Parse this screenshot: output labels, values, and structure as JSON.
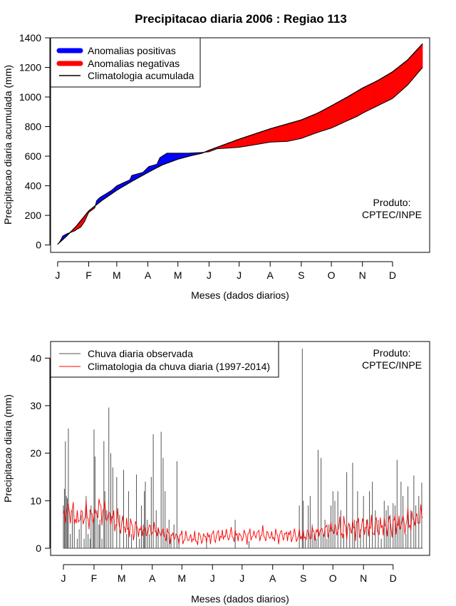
{
  "figure_title": "Precipitacao diaria 2006 : Regiao 113",
  "chart_data": [
    {
      "type": "area",
      "ylabel": "Precipitacao diaria acumulada (mm)",
      "xlabel": "Meses (dados diarios)",
      "xlim": [
        -6,
        372
      ],
      "ylim": [
        -50,
        1400
      ],
      "yticks": [
        0,
        200,
        400,
        600,
        800,
        1000,
        1200,
        1400
      ],
      "month_labels": [
        "J",
        "F",
        "M",
        "A",
        "M",
        "J",
        "J",
        "A",
        "S",
        "O",
        "N",
        "D"
      ],
      "month_ticks": [
        1,
        32,
        60,
        91,
        121,
        152,
        182,
        213,
        244,
        274,
        305,
        335
      ],
      "legend": [
        {
          "label": "Anomalias positivas",
          "color": "#0000ff"
        },
        {
          "label": "Anomalias negativas",
          "color": "#ff0000"
        },
        {
          "label": "Climatologia acumulada",
          "color": "#000000"
        }
      ],
      "product_label": [
        "Produto:",
        "CPTEC/INPE"
      ],
      "climatology_anchors": {
        "day": [
          1,
          10,
          20,
          32,
          45,
          60,
          75,
          91,
          105,
          121,
          135,
          145,
          152,
          182,
          213,
          244,
          260,
          274,
          290,
          305,
          320,
          335,
          350,
          365
        ],
        "value": [
          5,
          60,
          130,
          230,
          300,
          370,
          430,
          490,
          540,
          580,
          605,
          620,
          640,
          715,
          785,
          845,
          890,
          940,
          1000,
          1060,
          1110,
          1170,
          1250,
          1360
        ]
      },
      "observed_anchors": {
        "day": [
          1,
          3,
          5,
          6,
          10,
          18,
          20,
          24,
          28,
          32,
          38,
          40,
          43,
          55,
          60,
          73,
          75,
          86,
          89,
          92,
          100,
          103,
          110,
          130,
          145,
          152,
          160,
          182,
          200,
          213,
          230,
          244,
          260,
          274,
          290,
          300,
          305,
          320,
          335,
          350,
          365
        ],
        "value": [
          5,
          20,
          45,
          60,
          75,
          95,
          105,
          120,
          160,
          220,
          250,
          300,
          320,
          370,
          400,
          440,
          470,
          490,
          510,
          530,
          545,
          590,
          620,
          620,
          625,
          630,
          650,
          660,
          680,
          695,
          700,
          720,
          760,
          790,
          840,
          870,
          890,
          940,
          990,
          1080,
          1200
        ]
      }
    },
    {
      "type": "bar",
      "ylabel": "Precipitacao diaria (mm)",
      "xlabel": "Meses (dados diarios)",
      "xlim": [
        -12,
        372
      ],
      "ylim": [
        -1.5,
        43.5
      ],
      "yticks": [
        0,
        10,
        20,
        30,
        40
      ],
      "month_labels": [
        "J",
        "F",
        "M",
        "A",
        "M",
        "J",
        "J",
        "A",
        "S",
        "O",
        "N",
        "D"
      ],
      "month_ticks": [
        1,
        32,
        60,
        91,
        121,
        152,
        182,
        213,
        244,
        274,
        305,
        335
      ],
      "legend": [
        {
          "label": "Chuva diaria observada",
          "color": "#555555"
        },
        {
          "label": "Climatologia da chuva diaria (1997-2014)",
          "color": "#ff0000"
        }
      ],
      "product_label": [
        "Produto:",
        "CPTEC/INPE"
      ],
      "observed_daily": {
        "day": [
          1,
          2,
          3,
          4,
          5,
          6,
          8,
          10,
          12,
          15,
          17,
          19,
          22,
          24,
          26,
          28,
          29,
          31,
          32,
          33,
          35,
          37,
          38,
          40,
          42,
          43,
          45,
          47,
          49,
          51,
          55,
          58,
          62,
          65,
          67,
          70,
          75,
          78,
          80,
          82,
          83,
          84,
          86,
          88,
          90,
          92,
          95,
          97,
          100,
          102,
          104,
          106,
          108,
          110,
          113,
          116,
          118,
          146,
          175,
          189,
          240,
          243,
          244,
          246,
          249,
          251,
          253,
          255,
          257,
          259,
          262,
          264,
          266,
          268,
          270,
          272,
          274,
          276,
          279,
          282,
          285,
          288,
          291,
          294,
          296,
          299,
          302,
          305,
          308,
          311,
          314,
          317,
          320,
          323,
          326,
          328,
          330,
          332,
          335,
          337,
          339,
          341,
          343,
          345,
          348,
          350,
          353,
          356,
          358,
          361,
          364
        ],
        "value": [
          9,
          12.5,
          22.5,
          11,
          10.5,
          25.2,
          3,
          8,
          6,
          2,
          4,
          7,
          2,
          11,
          3,
          2,
          9,
          6,
          25,
          19.3,
          8,
          5,
          6,
          2,
          22.5,
          12,
          8,
          29.6,
          20,
          17,
          15,
          7,
          16.5,
          3,
          12,
          3,
          15.5,
          2,
          9,
          5,
          12,
          14,
          6,
          3,
          15,
          24,
          8,
          4,
          24.5,
          19,
          12,
          3,
          6,
          3,
          5,
          18.3,
          2,
          2,
          6,
          1.5,
          9,
          42,
          10,
          2,
          9,
          11,
          5,
          3,
          2,
          20.7,
          19,
          3,
          6,
          2,
          5,
          9,
          12,
          10,
          12,
          8,
          3,
          16,
          5,
          18,
          6,
          12,
          4,
          11,
          6,
          12,
          14,
          8,
          6,
          2,
          10,
          8,
          9,
          7,
          9.5,
          9,
          18.6,
          6,
          14,
          11,
          3,
          13,
          8,
          15.3,
          9,
          11,
          13.8
        ]
      },
      "climatology_anchors": {
        "day": [
          1,
          8,
          15,
          22,
          30,
          38,
          45,
          55,
          65,
          75,
          85,
          91,
          100,
          110,
          121,
          135,
          152,
          170,
          182,
          200,
          213,
          225,
          244,
          260,
          274,
          290,
          305,
          320,
          335,
          350,
          365
        ],
        "value": [
          7,
          8,
          6,
          7,
          6.5,
          8.5,
          7,
          5.5,
          4.5,
          4,
          3.5,
          4,
          3.2,
          2.5,
          2.3,
          2,
          2.5,
          2.8,
          2.5,
          3,
          2.5,
          2.8,
          2.5,
          3.5,
          4,
          4.2,
          4.5,
          4.3,
          5,
          5.5,
          6.5
        ]
      }
    }
  ]
}
